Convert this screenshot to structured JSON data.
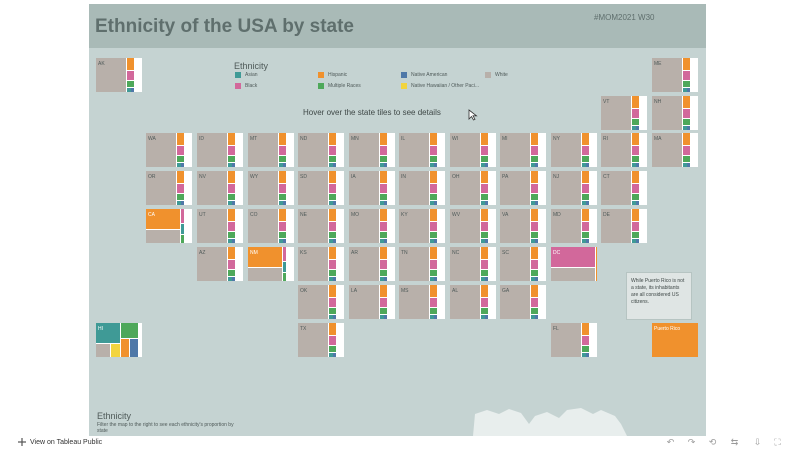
{
  "title": "Ethnicity of the USA by state",
  "tag": "#MOM2021 W30",
  "legend": {
    "title": "Ethnicity",
    "items": [
      {
        "label": "Asian",
        "color": "#3f9a96"
      },
      {
        "label": "Black",
        "color": "#d2689b"
      },
      {
        "label": "Hispanic",
        "color": "#f0912d"
      },
      {
        "label": "Multiple Races",
        "color": "#4ea85a"
      },
      {
        "label": "Native American",
        "color": "#4f78a8"
      },
      {
        "label": "Native Hawaiian / Other Paci...",
        "color": "#f2d43f"
      },
      {
        "label": "White",
        "color": "#b8b0aa"
      }
    ]
  },
  "hover_hint": "Hover over the state tiles to see details",
  "pr_note": "While Puerto Rico is not a state, its inhabitants are all considered US citizens.",
  "footer": {
    "title": "Ethnicity",
    "text": "Filter the map to the right to see each ethnicity's proportion by state"
  },
  "bottom_bar": {
    "view_label": "View on Tableau Public",
    "icons": [
      "undo-icon",
      "redo-icon",
      "revert-icon",
      "share-icon",
      "download-icon",
      "fullscreen-icon"
    ]
  },
  "states": [
    {
      "code": "AK",
      "type": "white"
    },
    {
      "code": "ME",
      "type": "white"
    },
    {
      "code": "VT",
      "type": "white"
    },
    {
      "code": "NH",
      "type": "white"
    },
    {
      "code": "WA",
      "type": "white"
    },
    {
      "code": "ID",
      "type": "white"
    },
    {
      "code": "MT",
      "type": "white"
    },
    {
      "code": "ND",
      "type": "white"
    },
    {
      "code": "MN",
      "type": "white"
    },
    {
      "code": "IL",
      "type": "white"
    },
    {
      "code": "WI",
      "type": "white"
    },
    {
      "code": "MI",
      "type": "white"
    },
    {
      "code": "NY",
      "type": "white"
    },
    {
      "code": "RI",
      "type": "white"
    },
    {
      "code": "MA",
      "type": "white"
    },
    {
      "code": "OR",
      "type": "white"
    },
    {
      "code": "NV",
      "type": "white"
    },
    {
      "code": "WY",
      "type": "white"
    },
    {
      "code": "SD",
      "type": "white"
    },
    {
      "code": "IA",
      "type": "white"
    },
    {
      "code": "IN",
      "type": "white"
    },
    {
      "code": "OH",
      "type": "white"
    },
    {
      "code": "PA",
      "type": "white"
    },
    {
      "code": "NJ",
      "type": "white"
    },
    {
      "code": "CT",
      "type": "white"
    },
    {
      "code": "CA",
      "type": "hispanic"
    },
    {
      "code": "UT",
      "type": "white"
    },
    {
      "code": "CO",
      "type": "white"
    },
    {
      "code": "NE",
      "type": "white"
    },
    {
      "code": "MO",
      "type": "white"
    },
    {
      "code": "KY",
      "type": "white"
    },
    {
      "code": "WV",
      "type": "white"
    },
    {
      "code": "VA",
      "type": "white"
    },
    {
      "code": "MD",
      "type": "white"
    },
    {
      "code": "DE",
      "type": "white"
    },
    {
      "code": "AZ",
      "type": "white"
    },
    {
      "code": "NM",
      "type": "hispanic"
    },
    {
      "code": "KS",
      "type": "white"
    },
    {
      "code": "AR",
      "type": "white"
    },
    {
      "code": "TN",
      "type": "white"
    },
    {
      "code": "NC",
      "type": "white"
    },
    {
      "code": "SC",
      "type": "white"
    },
    {
      "code": "DC",
      "type": "black"
    },
    {
      "code": "OK",
      "type": "white"
    },
    {
      "code": "LA",
      "type": "white"
    },
    {
      "code": "MS",
      "type": "white"
    },
    {
      "code": "AL",
      "type": "white"
    },
    {
      "code": "GA",
      "type": "white"
    },
    {
      "code": "HI",
      "type": "asian"
    },
    {
      "code": "TX",
      "type": "white"
    },
    {
      "code": "FL",
      "type": "white"
    },
    {
      "code": "Puerto Rico",
      "type": "pr"
    }
  ]
}
